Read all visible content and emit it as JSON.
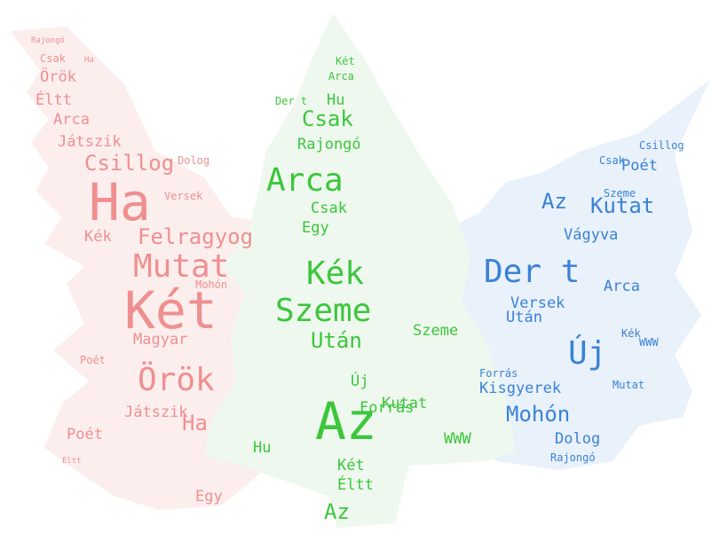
{
  "colors": {
    "red_tree_fill": "#fdeeee",
    "red_words": "#ef8f8f",
    "green_tree_fill": "#eef8ee",
    "green_words": "#3cc63c",
    "blue_tree_fill": "#e9f1fb",
    "blue_words": "#3a82d6"
  },
  "trees": {
    "red": {
      "words": [
        {
          "text": "Rajongó",
          "size": "xs"
        },
        {
          "text": "Csak",
          "size": "s"
        },
        {
          "text": "Ha",
          "size": "xs"
        },
        {
          "text": "Örök",
          "size": "m"
        },
        {
          "text": "Éltt",
          "size": "m"
        },
        {
          "text": "Arca",
          "size": "m"
        },
        {
          "text": "Játszik",
          "size": "m"
        },
        {
          "text": "Csillog",
          "size": "l"
        },
        {
          "text": "Dolog",
          "size": "s"
        },
        {
          "text": "Ha",
          "size": "xxl"
        },
        {
          "text": "Versek",
          "size": "s"
        },
        {
          "text": "Kék",
          "size": "m"
        },
        {
          "text": "Felragyog",
          "size": "l"
        },
        {
          "text": "Mutat",
          "size": "xl"
        },
        {
          "text": "Két",
          "size": "xxl"
        },
        {
          "text": "Mohón",
          "size": "s"
        },
        {
          "text": "Magyar",
          "size": "m"
        },
        {
          "text": "Poét",
          "size": "s"
        },
        {
          "text": "Örök",
          "size": "xl"
        },
        {
          "text": "Játszik",
          "size": "m"
        },
        {
          "text": "Ha",
          "size": "l"
        },
        {
          "text": "Poét",
          "size": "m"
        },
        {
          "text": "Egy",
          "size": "m"
        },
        {
          "text": "Éltt",
          "size": "xs"
        }
      ]
    },
    "green": {
      "words": [
        {
          "text": "Két",
          "size": "s"
        },
        {
          "text": "Arca",
          "size": "s"
        },
        {
          "text": "Hu",
          "size": "m"
        },
        {
          "text": "Der t",
          "size": "s"
        },
        {
          "text": "Csak",
          "size": "l"
        },
        {
          "text": "Rajongó",
          "size": "m"
        },
        {
          "text": "Arca",
          "size": "xl"
        },
        {
          "text": "Csak",
          "size": "m"
        },
        {
          "text": "Egy",
          "size": "m"
        },
        {
          "text": "Kék",
          "size": "xl"
        },
        {
          "text": "Szeme",
          "size": "xl"
        },
        {
          "text": "Után",
          "size": "l"
        },
        {
          "text": "Szeme",
          "size": "m"
        },
        {
          "text": "Az",
          "size": "xxl"
        },
        {
          "text": "Új",
          "size": "m"
        },
        {
          "text": "Forrás",
          "size": "m"
        },
        {
          "text": "Kutat",
          "size": "m"
        },
        {
          "text": "WWW",
          "size": "m"
        },
        {
          "text": "Hu",
          "size": "m"
        },
        {
          "text": "Két",
          "size": "m"
        },
        {
          "text": "Éltt",
          "size": "m"
        },
        {
          "text": "Az",
          "size": "l"
        }
      ]
    },
    "blue": {
      "words": [
        {
          "text": "Poét",
          "size": "m"
        },
        {
          "text": "Csillog",
          "size": "s"
        },
        {
          "text": "Csak",
          "size": "s"
        },
        {
          "text": "Az",
          "size": "l"
        },
        {
          "text": "Kutat",
          "size": "l"
        },
        {
          "text": "Szeme",
          "size": "s"
        },
        {
          "text": "Vágyva",
          "size": "m"
        },
        {
          "text": "Der t",
          "size": "xl"
        },
        {
          "text": "Új",
          "size": "xl"
        },
        {
          "text": "Versek",
          "size": "m"
        },
        {
          "text": "Arca",
          "size": "m"
        },
        {
          "text": "Után",
          "size": "m"
        },
        {
          "text": "Kék",
          "size": "s"
        },
        {
          "text": "WWW",
          "size": "s"
        },
        {
          "text": "Kisgyerek",
          "size": "m"
        },
        {
          "text": "Mohón",
          "size": "l"
        },
        {
          "text": "Dolog",
          "size": "m"
        },
        {
          "text": "Rajongó",
          "size": "s"
        },
        {
          "text": "Mutat",
          "size": "s"
        },
        {
          "text": "Forrás",
          "size": "s"
        }
      ]
    }
  }
}
